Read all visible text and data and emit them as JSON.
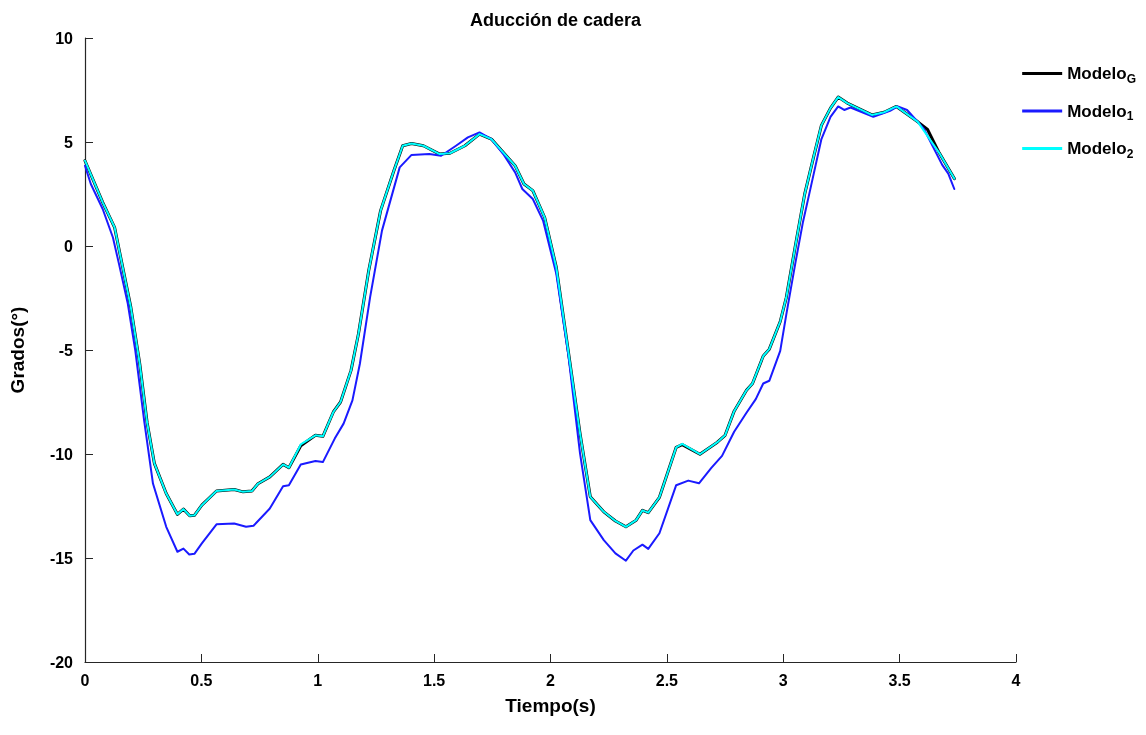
{
  "chart_data": {
    "type": "line",
    "title": "Aducción de cadera",
    "xlabel": "Tiempo(s)",
    "ylabel": "Grados(°)",
    "xlim": [
      0,
      4
    ],
    "xticks": [
      0,
      0.5,
      1,
      1.5,
      2,
      2.5,
      3,
      3.5,
      4
    ],
    "ylim": [
      -20,
      10
    ],
    "yticks": [
      -20,
      -15,
      -10,
      -5,
      0,
      5,
      10
    ],
    "grid": false,
    "legend": "top right",
    "marker": "none",
    "line_style": "solid",
    "series": [
      {
        "name": "Modelo$_{G}$",
        "color": "#000000",
        "x": [
          0,
          0.076,
          0.127,
          0.197,
          0.235,
          0.267,
          0.298,
          0.349,
          0.397,
          0.423,
          0.45,
          0.47,
          0.502,
          0.565,
          0.641,
          0.679,
          0.717,
          0.743,
          0.794,
          0.851,
          0.876,
          0.927,
          0.99,
          1.022,
          1.067,
          1.098,
          1.143,
          1.175,
          1.219,
          1.27,
          1.327,
          1.365,
          1.403,
          1.454,
          1.524,
          1.568,
          1.632,
          1.695,
          1.746,
          1.848,
          1.886,
          1.924,
          1.975,
          2.025,
          2.076,
          2.127,
          2.171,
          2.229,
          2.279,
          2.324,
          2.368,
          2.395,
          2.42,
          2.468,
          2.54,
          2.566,
          2.642,
          2.717,
          2.75,
          2.789,
          2.842,
          2.868,
          2.914,
          2.94,
          2.987,
          3.013,
          3.052,
          3.092,
          3.131,
          3.164,
          3.203,
          3.236,
          3.275,
          3.381,
          3.433,
          3.486,
          3.578,
          3.62,
          3.67,
          3.735
        ],
        "values": [
          4.1,
          2.1,
          0.9,
          -2.95,
          -5.65,
          -8.5,
          -10.45,
          -11.9,
          -12.9,
          -12.65,
          -12.97,
          -12.95,
          -12.46,
          -11.78,
          -11.71,
          -11.82,
          -11.78,
          -11.43,
          -11.1,
          -10.5,
          -10.66,
          -9.6,
          -9.1,
          -9.15,
          -7.98,
          -7.5,
          -5.98,
          -4.22,
          -1.18,
          1.7,
          3.62,
          4.82,
          4.93,
          4.82,
          4.42,
          4.46,
          4.82,
          5.38,
          5.14,
          3.86,
          2.98,
          2.66,
          1.37,
          -1.03,
          -5.02,
          -9.02,
          -12.06,
          -12.78,
          -13.22,
          -13.5,
          -13.18,
          -12.71,
          -12.82,
          -12.08,
          -9.68,
          -9.55,
          -10.01,
          -9.43,
          -9.1,
          -7.94,
          -6.94,
          -6.61,
          -5.29,
          -4.96,
          -3.63,
          -2.48,
          0.01,
          2.49,
          4.31,
          5.8,
          6.63,
          7.16,
          6.87,
          6.3,
          6.43,
          6.71,
          5.97,
          5.6,
          4.48,
          3.24
        ]
      },
      {
        "name": "Modelo$_{1}$",
        "color": "#1a1aff",
        "x": [
          0,
          0.025,
          0.076,
          0.12,
          0.146,
          0.184,
          0.216,
          0.254,
          0.292,
          0.349,
          0.397,
          0.423,
          0.448,
          0.47,
          0.502,
          0.565,
          0.641,
          0.692,
          0.724,
          0.794,
          0.851,
          0.876,
          0.927,
          0.99,
          1.022,
          1.073,
          1.111,
          1.149,
          1.181,
          1.225,
          1.276,
          1.352,
          1.403,
          1.479,
          1.53,
          1.594,
          1.645,
          1.695,
          1.746,
          1.797,
          1.848,
          1.879,
          1.924,
          1.968,
          2.025,
          2.076,
          2.127,
          2.171,
          2.229,
          2.279,
          2.324,
          2.356,
          2.395,
          2.42,
          2.468,
          2.54,
          2.592,
          2.638,
          2.691,
          2.737,
          2.789,
          2.842,
          2.882,
          2.914,
          2.94,
          2.987,
          3.013,
          3.052,
          3.085,
          3.118,
          3.164,
          3.203,
          3.236,
          3.262,
          3.289,
          3.387,
          3.459,
          3.492,
          3.532,
          3.604,
          3.683,
          3.709,
          3.735
        ],
        "values": [
          3.86,
          2.98,
          1.78,
          0.41,
          -0.86,
          -2.78,
          -5.02,
          -8.38,
          -11.42,
          -13.5,
          -14.7,
          -14.55,
          -14.83,
          -14.8,
          -14.3,
          -13.38,
          -13.34,
          -13.5,
          -13.45,
          -12.62,
          -11.55,
          -11.5,
          -10.5,
          -10.34,
          -10.39,
          -9.26,
          -8.54,
          -7.42,
          -5.66,
          -2.46,
          0.74,
          3.78,
          4.38,
          4.42,
          4.34,
          4.82,
          5.22,
          5.46,
          5.14,
          4.42,
          3.54,
          2.74,
          2.26,
          1.22,
          -1.34,
          -5.18,
          -9.98,
          -13.18,
          -14.14,
          -14.78,
          -15.13,
          -14.64,
          -14.36,
          -14.56,
          -13.81,
          -11.5,
          -11.28,
          -11.41,
          -10.67,
          -10.09,
          -8.93,
          -8.02,
          -7.36,
          -6.61,
          -6.48,
          -5.04,
          -3.3,
          -0.82,
          1.17,
          2.82,
          5.14,
          6.21,
          6.71,
          6.54,
          6.66,
          6.21,
          6.5,
          6.71,
          6.54,
          5.64,
          3.9,
          3.48,
          2.74
        ]
      },
      {
        "name": "Modelo$_{2}$",
        "color": "#00ffff",
        "x": [
          0,
          0.076,
          0.127,
          0.197,
          0.235,
          0.267,
          0.298,
          0.349,
          0.397,
          0.423,
          0.45,
          0.47,
          0.502,
          0.565,
          0.641,
          0.679,
          0.717,
          0.743,
          0.794,
          0.851,
          0.876,
          0.927,
          0.99,
          1.022,
          1.067,
          1.098,
          1.143,
          1.175,
          1.219,
          1.27,
          1.327,
          1.365,
          1.403,
          1.454,
          1.524,
          1.568,
          1.632,
          1.695,
          1.746,
          1.848,
          1.886,
          1.924,
          1.975,
          2.025,
          2.076,
          2.127,
          2.171,
          2.229,
          2.279,
          2.324,
          2.368,
          2.395,
          2.42,
          2.468,
          2.54,
          2.566,
          2.642,
          2.717,
          2.75,
          2.789,
          2.842,
          2.868,
          2.914,
          2.94,
          2.987,
          3.013,
          3.052,
          3.092,
          3.131,
          3.164,
          3.203,
          3.236,
          3.275,
          3.381,
          3.433,
          3.486,
          3.578,
          3.67,
          3.735
        ],
        "values": [
          4.1,
          2.1,
          0.9,
          -2.95,
          -5.65,
          -8.5,
          -10.45,
          -11.9,
          -12.9,
          -12.65,
          -12.97,
          -12.95,
          -12.46,
          -11.78,
          -11.71,
          -11.82,
          -11.78,
          -11.43,
          -11.1,
          -10.5,
          -10.66,
          -9.54,
          -9.1,
          -9.15,
          -7.98,
          -7.5,
          -5.98,
          -4.22,
          -1.18,
          1.7,
          3.62,
          4.82,
          4.93,
          4.82,
          4.42,
          4.46,
          4.82,
          5.38,
          5.14,
          3.86,
          2.98,
          2.66,
          1.37,
          -1.03,
          -5.02,
          -9.02,
          -12.06,
          -12.78,
          -13.22,
          -13.5,
          -13.18,
          -12.71,
          -12.82,
          -12.08,
          -9.68,
          -9.51,
          -10.01,
          -9.43,
          -9.1,
          -7.94,
          -6.94,
          -6.61,
          -5.29,
          -4.96,
          -3.63,
          -2.48,
          0.01,
          2.49,
          4.31,
          5.8,
          6.63,
          7.16,
          6.87,
          6.3,
          6.43,
          6.71,
          5.97,
          4.48,
          3.24
        ]
      }
    ]
  }
}
